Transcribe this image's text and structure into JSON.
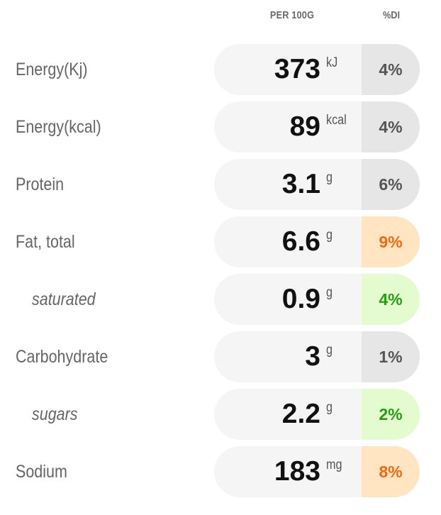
{
  "header": {
    "per": "PER 100G",
    "di": "%DI"
  },
  "colors": {
    "grey_bg": "#e6e6e6",
    "grey_text": "#555555",
    "orange_bg": "#ffe5c2",
    "orange_text": "#ef6a12",
    "green_bg": "#e3fbcf",
    "green_text": "#2a9c14",
    "pill_bg": "#f5f5f5"
  },
  "rows": [
    {
      "label": "Energy(Kj)",
      "value": "373",
      "unit": "kJ",
      "di": "4%",
      "level": "grey",
      "sub": false
    },
    {
      "label": "Energy(kcal)",
      "value": "89",
      "unit": "kcal",
      "di": "4%",
      "level": "grey",
      "sub": false
    },
    {
      "label": "Protein",
      "value": "3.1",
      "unit": "g",
      "di": "6%",
      "level": "grey",
      "sub": false
    },
    {
      "label": "Fat, total",
      "value": "6.6",
      "unit": "g",
      "di": "9%",
      "level": "orange",
      "sub": false
    },
    {
      "label": "saturated",
      "value": "0.9",
      "unit": "g",
      "di": "4%",
      "level": "green",
      "sub": true
    },
    {
      "label": "Carbohydrate",
      "value": "3",
      "unit": "g",
      "di": "1%",
      "level": "grey",
      "sub": false
    },
    {
      "label": "sugars",
      "value": "2.2",
      "unit": "g",
      "di": "2%",
      "level": "green",
      "sub": true
    },
    {
      "label": "Sodium",
      "value": "183",
      "unit": "mg",
      "di": "8%",
      "level": "orange",
      "sub": false
    }
  ]
}
